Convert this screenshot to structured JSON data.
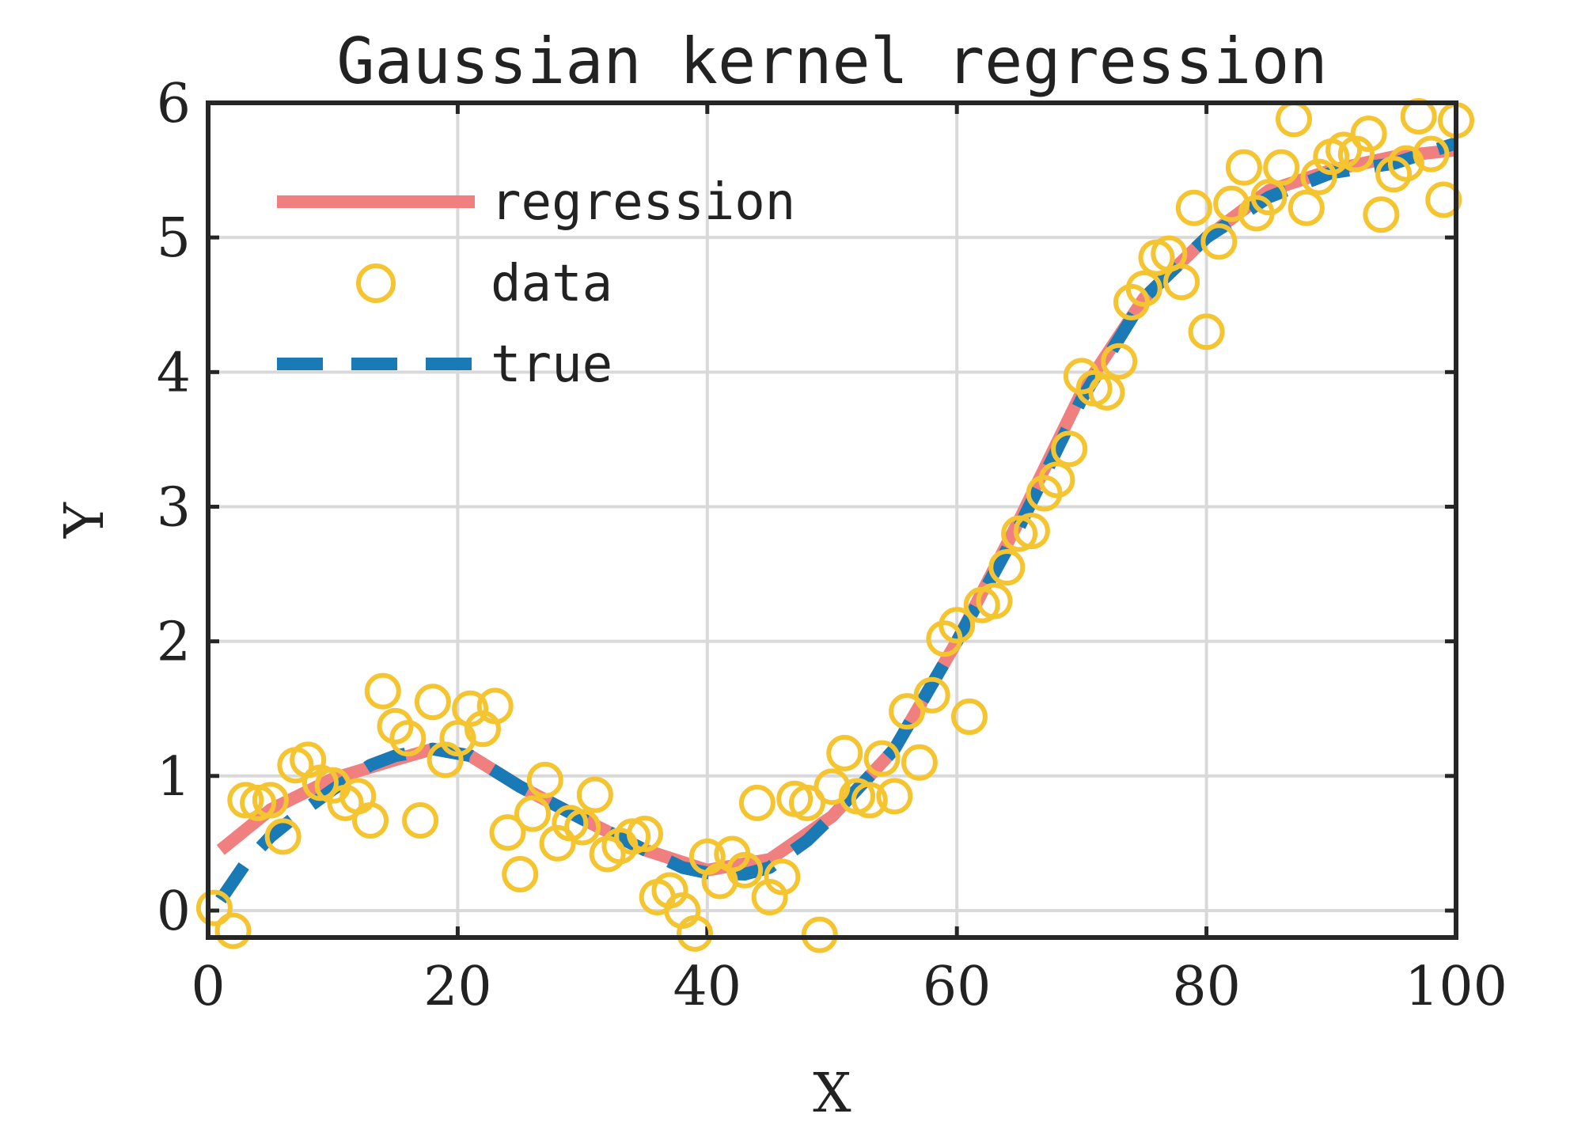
{
  "chart_data": {
    "type": "scatter",
    "title": "Gaussian kernel regression",
    "xlabel": "X",
    "ylabel": "Y",
    "xlim": [
      0,
      100
    ],
    "ylim": [
      -0.2,
      6
    ],
    "x_ticks": [
      "0",
      "20",
      "40",
      "60",
      "80",
      "100"
    ],
    "y_ticks": [
      "0",
      "1",
      "2",
      "3",
      "4",
      "5",
      "6"
    ],
    "grid": true,
    "legend_position": "top-left",
    "legend": [
      "regression",
      "data",
      "true"
    ],
    "colors": {
      "regression": "#f08080",
      "data": "#f5c431",
      "true": "#1a7ab5",
      "axes": "#262626",
      "grid": "#d9d9d9"
    },
    "series": [
      {
        "name": "regression",
        "style": "solid-line",
        "x": [
          1,
          5,
          10,
          15,
          18,
          21,
          25,
          30,
          35,
          40,
          45,
          50,
          55,
          60,
          65,
          70,
          75,
          80,
          85,
          90,
          95,
          100
        ],
        "y": [
          0.45,
          0.75,
          0.98,
          1.12,
          1.2,
          1.15,
          0.92,
          0.68,
          0.45,
          0.3,
          0.38,
          0.7,
          1.2,
          2.0,
          2.9,
          3.85,
          4.55,
          5.0,
          5.35,
          5.5,
          5.6,
          5.65
        ]
      },
      {
        "name": "data",
        "style": "circle-markers",
        "x": [
          0.5,
          2,
          3,
          4,
          5,
          6,
          7,
          8,
          9,
          10,
          11,
          12,
          13,
          14,
          15,
          16,
          17,
          18,
          19,
          20,
          21,
          22,
          23,
          24,
          25,
          26,
          27,
          28,
          29,
          30,
          31,
          32,
          33,
          34,
          35,
          36,
          37,
          38,
          39,
          40,
          41,
          42,
          43,
          44,
          45,
          46,
          47,
          48,
          49,
          50,
          51,
          52,
          53,
          54,
          55,
          56,
          57,
          58,
          59,
          60,
          61,
          62,
          63,
          64,
          65,
          66,
          67,
          68,
          69,
          70,
          71,
          72,
          73,
          74,
          75,
          76,
          77,
          78,
          79,
          80,
          81,
          82,
          83,
          84,
          85,
          86,
          87,
          88,
          89,
          90,
          91,
          92,
          93,
          94,
          95,
          96,
          97,
          98,
          99,
          100
        ],
        "y": [
          0.02,
          -0.15,
          0.82,
          0.8,
          0.82,
          0.55,
          1.08,
          1.12,
          0.95,
          0.93,
          0.8,
          0.85,
          0.67,
          1.63,
          1.37,
          1.28,
          0.67,
          1.55,
          1.12,
          1.28,
          1.5,
          1.35,
          1.52,
          0.58,
          0.27,
          0.72,
          0.97,
          0.5,
          0.65,
          0.62,
          0.86,
          0.42,
          0.48,
          0.55,
          0.57,
          0.1,
          0.15,
          0.0,
          -0.17,
          0.4,
          0.22,
          0.42,
          0.3,
          0.8,
          0.1,
          0.25,
          0.83,
          0.8,
          -0.18,
          0.92,
          1.17,
          0.85,
          0.82,
          1.13,
          0.85,
          1.48,
          1.1,
          1.6,
          2.02,
          2.12,
          1.44,
          2.27,
          2.3,
          2.55,
          2.8,
          2.82,
          3.1,
          3.2,
          3.43,
          3.97,
          3.88,
          3.85,
          4.08,
          4.52,
          4.62,
          4.85,
          4.88,
          4.67,
          5.22,
          4.3,
          4.97,
          5.25,
          5.52,
          5.18,
          5.3,
          5.52,
          5.88,
          5.22,
          5.45,
          5.6,
          5.65,
          5.62,
          5.77,
          5.17,
          5.47,
          5.55,
          5.9,
          5.62,
          5.28,
          5.87
        ]
      },
      {
        "name": "true",
        "style": "dashed-line",
        "x": [
          1,
          3,
          5,
          7,
          10,
          13,
          15,
          18,
          21,
          25,
          30,
          35,
          38,
          40,
          43,
          45,
          48,
          50,
          55,
          60,
          65,
          70,
          75,
          80,
          85,
          90,
          95,
          100
        ],
        "y": [
          0.08,
          0.35,
          0.55,
          0.7,
          0.9,
          1.08,
          1.15,
          1.2,
          1.15,
          0.92,
          0.68,
          0.45,
          0.32,
          0.28,
          0.27,
          0.32,
          0.52,
          0.7,
          1.2,
          2.0,
          2.85,
          3.8,
          4.55,
          5.0,
          5.3,
          5.48,
          5.55,
          5.7
        ]
      }
    ]
  }
}
